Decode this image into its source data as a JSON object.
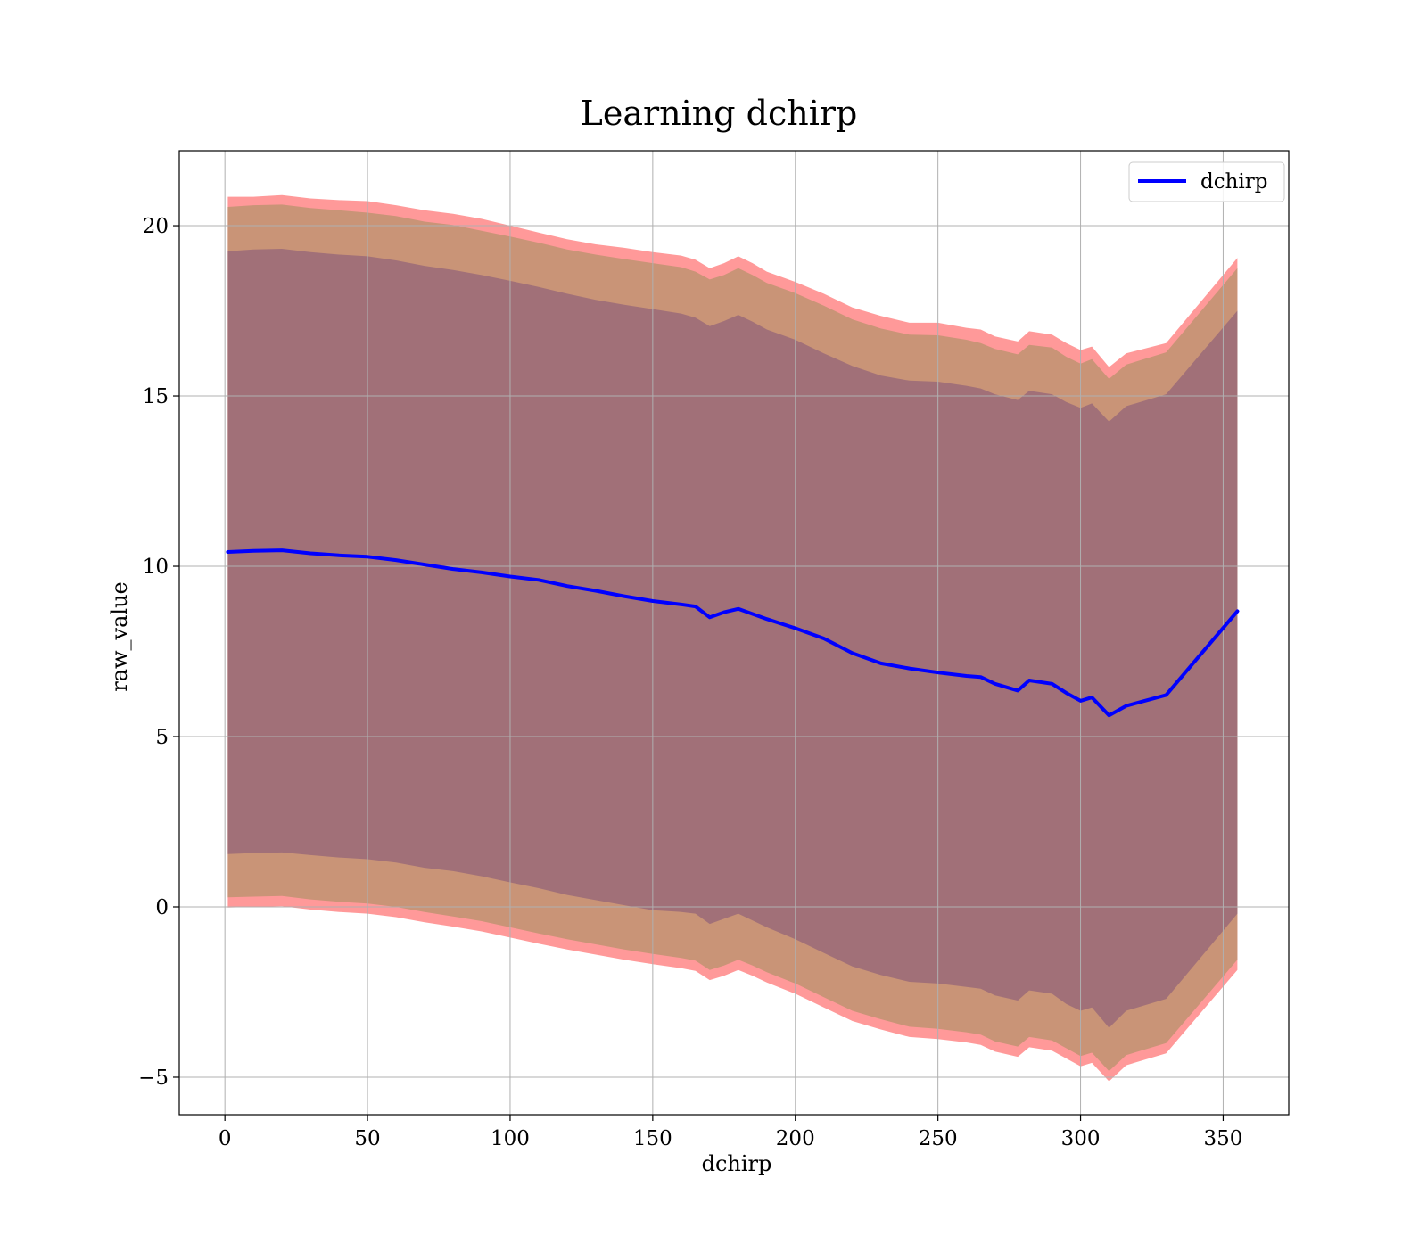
{
  "chart_data": {
    "type": "line",
    "title": "Learning dchirp",
    "xlabel": "dchirp",
    "ylabel": "raw_value",
    "xlim": [
      -16,
      373
    ],
    "ylim": [
      -6.1,
      22.2
    ],
    "x_ticks": [
      0,
      50,
      100,
      150,
      200,
      250,
      300,
      350
    ],
    "x_tick_labels": [
      "0",
      "50",
      "100",
      "150",
      "200",
      "250",
      "300",
      "350"
    ],
    "y_ticks": [
      -5,
      0,
      5,
      10,
      15,
      20
    ],
    "y_tick_labels": [
      "−5",
      "0",
      "5",
      "10",
      "15",
      "20"
    ],
    "grid": true,
    "legend": {
      "position": "top-right",
      "entries": [
        {
          "name": "dchirp",
          "color": "#0000ff"
        }
      ]
    },
    "colors": {
      "line": "#0000ff",
      "band_outer": "#ff9999",
      "band_middle": "#c99477",
      "band_inner": "#a17078"
    },
    "x": [
      1,
      10,
      20,
      30,
      40,
      50,
      60,
      70,
      80,
      90,
      100,
      110,
      120,
      130,
      140,
      150,
      160,
      165,
      170,
      175,
      180,
      185,
      190,
      200,
      210,
      220,
      230,
      240,
      250,
      260,
      265,
      270,
      278,
      282,
      290,
      295,
      300,
      304,
      310,
      316,
      330,
      355
    ],
    "series": [
      {
        "name": "dchirp",
        "values": [
          10.42,
          10.45,
          10.47,
          10.38,
          10.32,
          10.28,
          10.18,
          10.05,
          9.92,
          9.82,
          9.7,
          9.6,
          9.42,
          9.28,
          9.12,
          8.98,
          8.88,
          8.82,
          8.5,
          8.65,
          8.75,
          8.6,
          8.45,
          8.18,
          7.88,
          7.45,
          7.15,
          7.0,
          6.88,
          6.78,
          6.75,
          6.55,
          6.35,
          6.65,
          6.55,
          6.28,
          6.05,
          6.15,
          5.62,
          5.9,
          6.22,
          8.68
        ]
      },
      {
        "name": "",
        "values": [
          20.85,
          20.85,
          20.9,
          20.8,
          20.75,
          20.72,
          20.6,
          20.45,
          20.35,
          20.2,
          20.0,
          19.8,
          19.6,
          19.45,
          19.35,
          19.22,
          19.12,
          19.0,
          18.75,
          18.9,
          19.1,
          18.9,
          18.65,
          18.35,
          18.0,
          17.6,
          17.35,
          17.15,
          17.15,
          17.0,
          16.95,
          16.75,
          16.6,
          16.9,
          16.8,
          16.55,
          16.35,
          16.45,
          15.85,
          16.25,
          16.55,
          19.05
        ]
      },
      {
        "name": "",
        "values": [
          20.55,
          20.6,
          20.62,
          20.52,
          20.45,
          20.38,
          20.28,
          20.12,
          20.02,
          19.85,
          19.68,
          19.5,
          19.3,
          19.15,
          19.02,
          18.9,
          18.78,
          18.65,
          18.42,
          18.55,
          18.75,
          18.55,
          18.32,
          18.02,
          17.65,
          17.25,
          16.98,
          16.8,
          16.78,
          16.65,
          16.55,
          16.38,
          16.22,
          16.5,
          16.42,
          16.15,
          15.95,
          16.08,
          15.5,
          15.92,
          16.28,
          18.75
        ]
      },
      {
        "name": "",
        "values": [
          19.25,
          19.3,
          19.32,
          19.22,
          19.15,
          19.1,
          18.98,
          18.82,
          18.7,
          18.55,
          18.38,
          18.2,
          18.0,
          17.82,
          17.68,
          17.55,
          17.42,
          17.3,
          17.05,
          17.2,
          17.38,
          17.18,
          16.95,
          16.65,
          16.25,
          15.88,
          15.6,
          15.45,
          15.42,
          15.3,
          15.22,
          15.05,
          14.88,
          15.15,
          15.05,
          14.82,
          14.65,
          14.78,
          14.25,
          14.7,
          15.05,
          17.5
        ]
      },
      {
        "name": "",
        "values": [
          1.55,
          1.58,
          1.6,
          1.52,
          1.45,
          1.4,
          1.3,
          1.15,
          1.05,
          0.9,
          0.72,
          0.55,
          0.35,
          0.2,
          0.05,
          -0.1,
          -0.15,
          -0.2,
          -0.5,
          -0.35,
          -0.2,
          -0.4,
          -0.6,
          -0.95,
          -1.35,
          -1.75,
          -2.0,
          -2.2,
          -2.25,
          -2.35,
          -2.4,
          -2.6,
          -2.75,
          -2.45,
          -2.55,
          -2.85,
          -3.05,
          -2.95,
          -3.55,
          -3.05,
          -2.7,
          -0.2
        ]
      },
      {
        "name": "",
        "values": [
          0.28,
          0.3,
          0.32,
          0.22,
          0.15,
          0.1,
          0.0,
          -0.15,
          -0.28,
          -0.42,
          -0.6,
          -0.78,
          -0.95,
          -1.1,
          -1.25,
          -1.38,
          -1.5,
          -1.58,
          -1.85,
          -1.72,
          -1.55,
          -1.72,
          -1.92,
          -2.25,
          -2.65,
          -3.05,
          -3.3,
          -3.52,
          -3.58,
          -3.68,
          -3.75,
          -3.95,
          -4.1,
          -3.82,
          -3.92,
          -4.15,
          -4.38,
          -4.28,
          -4.82,
          -4.35,
          -4.0,
          -1.55
        ]
      },
      {
        "name": "",
        "values": [
          -0.02,
          0.0,
          0.02,
          -0.08,
          -0.15,
          -0.2,
          -0.3,
          -0.45,
          -0.58,
          -0.72,
          -0.9,
          -1.08,
          -1.25,
          -1.4,
          -1.55,
          -1.68,
          -1.8,
          -1.88,
          -2.15,
          -2.02,
          -1.85,
          -2.02,
          -2.22,
          -2.55,
          -2.95,
          -3.35,
          -3.6,
          -3.82,
          -3.88,
          -3.98,
          -4.05,
          -4.25,
          -4.4,
          -4.12,
          -4.22,
          -4.45,
          -4.68,
          -4.58,
          -5.12,
          -4.65,
          -4.3,
          -1.85
        ]
      }
    ]
  }
}
